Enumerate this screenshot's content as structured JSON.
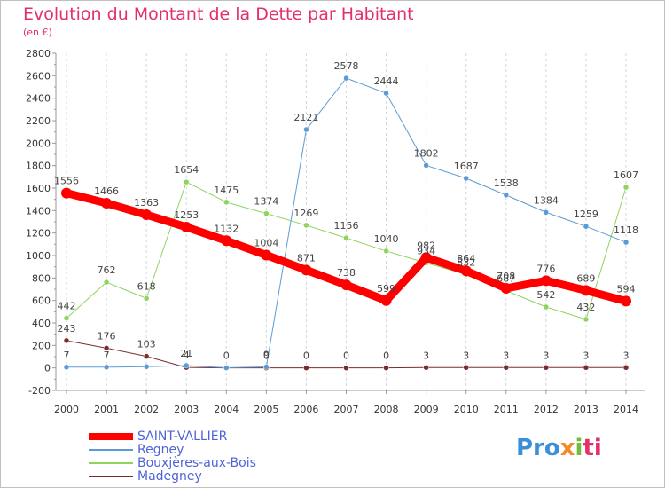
{
  "title": "Evolution du Montant de la Dette par Habitant",
  "subtitle": "(en €)",
  "logo": {
    "p1": "Pro",
    "p2": "x",
    "p3": "i",
    "p4": "ti"
  },
  "chart_data": {
    "type": "line",
    "x": [
      "2000",
      "2001",
      "2002",
      "2003",
      "2004",
      "2005",
      "2006",
      "2007",
      "2008",
      "2009",
      "2010",
      "2011",
      "2012",
      "2013",
      "2014"
    ],
    "ylim": [
      -200,
      2800
    ],
    "yticks": [
      -200,
      0,
      200,
      400,
      600,
      800,
      1000,
      1200,
      1400,
      1600,
      1800,
      2000,
      2200,
      2400,
      2600,
      2800
    ],
    "grid": "dashed-vertical",
    "legend_position": "bottom-left",
    "series": [
      {
        "name": "SAINT-VALLIER",
        "color": "#ff0000",
        "width": 9,
        "values": [
          1556,
          1466,
          1363,
          1253,
          1132,
          1004,
          871,
          738,
          599,
          982,
          864,
          708,
          776,
          689,
          594
        ],
        "labels": [
          "1556",
          "1466",
          "1363",
          "1253",
          "1132",
          "1004",
          "871",
          "738",
          "599",
          "982",
          "864",
          "708",
          "776",
          "689",
          "594"
        ]
      },
      {
        "name": "Regney",
        "color": "#5b9bd5",
        "width": 1,
        "values": [
          7,
          7,
          11,
          21,
          1,
          9,
          2121,
          2578,
          2444,
          1802,
          1687,
          1538,
          1384,
          1259,
          1118
        ],
        "labels": [
          "7",
          "7",
          "",
          "21",
          "",
          "9",
          "2121",
          "2578",
          "2444",
          "1802",
          "1687",
          "1538",
          "1384",
          "1259",
          "1118"
        ]
      },
      {
        "name": "Bouxjères-aux-Bois",
        "color": "#8ed45e",
        "width": 1,
        "values": [
          442,
          762,
          618,
          1654,
          1475,
          1374,
          1269,
          1156,
          1040,
          934,
          832,
          687,
          542,
          432,
          1607
        ],
        "labels": [
          "442",
          "762",
          "618",
          "1654",
          "1475",
          "1374",
          "1269",
          "1156",
          "1040",
          "934",
          "832",
          "687",
          "542",
          "432",
          "1607"
        ]
      },
      {
        "name": "Madegney",
        "color": "#7b2d2d",
        "width": 1,
        "values": [
          243,
          176,
          103,
          4,
          0,
          0,
          0,
          0,
          0,
          3,
          3,
          3,
          3,
          3,
          3
        ],
        "labels": [
          "243",
          "176",
          "103",
          "4",
          "0",
          "0",
          "0",
          "0",
          "0",
          "3",
          "3",
          "3",
          "3",
          "3",
          "3"
        ]
      }
    ]
  }
}
